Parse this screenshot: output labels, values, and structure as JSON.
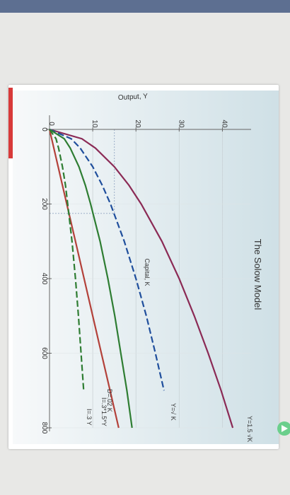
{
  "chart_data": {
    "type": "line",
    "title": "The Solow Model",
    "xlabel": "Capital, K",
    "ylabel": "Output, Y",
    "x_ticks": [
      "0",
      "200",
      "400",
      "600",
      "800"
    ],
    "y_ticks": [
      "0",
      "10",
      "20",
      "30",
      "40"
    ],
    "xlim": [
      0,
      800
    ],
    "ylim": [
      0,
      45
    ],
    "grid": true,
    "series": [
      {
        "name": "Y=1.5 √K",
        "color": "#8b2a55",
        "style": "solid",
        "x": [
          0,
          25,
          50,
          100,
          150,
          200,
          300,
          400,
          500,
          600,
          700,
          800
        ],
        "y": [
          0,
          7.5,
          10.6,
          15.0,
          18.4,
          21.2,
          26.0,
          30.0,
          33.5,
          36.7,
          39.7,
          42.4
        ]
      },
      {
        "name": "Y=√ K",
        "color": "#1f4e9c",
        "style": "dashed",
        "x": [
          0,
          25,
          50,
          100,
          150,
          200,
          300,
          400,
          500,
          600,
          700
        ],
        "y": [
          0,
          5.0,
          7.1,
          10.0,
          12.2,
          14.1,
          17.3,
          20.0,
          22.4,
          24.5,
          26.5
        ]
      },
      {
        "name": "D=.02 K",
        "color": "#b3413a",
        "style": "solid",
        "x": [
          0,
          100,
          200,
          300,
          400,
          500,
          600,
          700,
          800
        ],
        "y": [
          0,
          2,
          4,
          6,
          8,
          10,
          12,
          14,
          16
        ]
      },
      {
        "name": "I=.3*1.5*Y",
        "color": "#2e7d32",
        "style": "solid",
        "x": [
          0,
          25,
          50,
          100,
          150,
          200,
          300,
          400,
          500,
          600,
          700,
          800
        ],
        "y": [
          0,
          3.4,
          4.8,
          6.8,
          8.3,
          9.5,
          11.7,
          13.5,
          15.1,
          16.5,
          17.9,
          19.1
        ]
      },
      {
        "name": "I=.3 Y",
        "color": "#2e7d32",
        "style": "dashed",
        "x": [
          0,
          25,
          50,
          100,
          150,
          200,
          300,
          400,
          500,
          600,
          700
        ],
        "y": [
          0,
          1.5,
          2.1,
          3.0,
          3.7,
          4.2,
          5.2,
          6.0,
          6.7,
          7.3,
          7.9
        ]
      }
    ],
    "labels": {
      "s1": "Y=1.5 √K",
      "s2": "Y=√ K",
      "s3": "D=.02 K",
      "s4": "I=.3*1.5*Y",
      "s5": "I=.3 Y"
    },
    "reference_lines": [
      {
        "x": 225,
        "y": 15
      }
    ]
  }
}
